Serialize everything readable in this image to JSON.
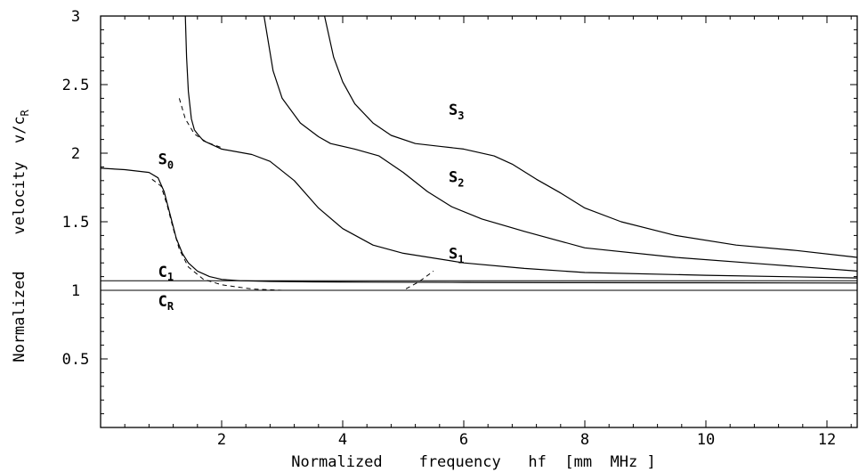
{
  "chart_data": {
    "type": "line",
    "title": "",
    "xlabel": "Normalized    frequency   hf  [mm  MHz ]",
    "ylabel": "Normalized    velocity  v/c",
    "ylabel_sub": "R",
    "xlim": [
      0,
      12.5
    ],
    "ylim": [
      0,
      3
    ],
    "x_ticks": [
      2,
      4,
      6,
      8,
      10,
      12
    ],
    "x_tick_labels": [
      "2",
      "4",
      "6",
      "8",
      "10",
      "12"
    ],
    "y_ticks": [
      0.5,
      1,
      1.5,
      2,
      2.5,
      3
    ],
    "y_tick_labels": [
      "0.5",
      "1",
      "1.5",
      "2",
      "2.5",
      "3"
    ],
    "grid": false,
    "legend": "none",
    "reference_lines": [
      {
        "label": "C",
        "sub": "1",
        "y": 1.07,
        "style": "solid"
      },
      {
        "label": "C",
        "sub": "R",
        "y": 1.0,
        "style": "solid"
      }
    ],
    "series": [
      {
        "name": "S",
        "sub": "0",
        "style": "solid",
        "x": [
          0.0,
          0.4,
          0.8,
          0.95,
          1.05,
          1.15,
          1.25,
          1.35,
          1.45,
          1.6,
          1.8,
          2.0,
          2.3,
          2.8,
          3.5,
          4.5,
          6.0,
          8.0,
          10.0,
          12.5
        ],
        "y": [
          1.89,
          1.88,
          1.86,
          1.82,
          1.72,
          1.55,
          1.38,
          1.27,
          1.2,
          1.14,
          1.1,
          1.08,
          1.07,
          1.065,
          1.062,
          1.06,
          1.058,
          1.056,
          1.055,
          1.053
        ]
      },
      {
        "name": "S",
        "sub": "1",
        "style": "solid",
        "x": [
          1.4,
          1.42,
          1.45,
          1.5,
          1.55,
          1.6,
          1.7,
          2.0,
          2.5,
          2.8,
          3.2,
          3.6,
          4.0,
          4.5,
          5.0,
          6.0,
          7.0,
          8.0,
          10.0,
          12.5
        ],
        "y": [
          3.0,
          2.7,
          2.45,
          2.25,
          2.17,
          2.14,
          2.09,
          2.03,
          1.99,
          1.94,
          1.8,
          1.6,
          1.45,
          1.33,
          1.27,
          1.2,
          1.16,
          1.13,
          1.11,
          1.09
        ]
      },
      {
        "name": "S",
        "sub": "2",
        "style": "solid",
        "x": [
          2.7,
          2.85,
          3.0,
          3.3,
          3.6,
          3.8,
          4.2,
          4.6,
          5.0,
          5.4,
          5.8,
          6.3,
          7.0,
          8.0,
          9.5,
          11.0,
          12.5
        ],
        "y": [
          3.0,
          2.6,
          2.4,
          2.22,
          2.12,
          2.07,
          2.03,
          1.98,
          1.86,
          1.72,
          1.61,
          1.52,
          1.43,
          1.31,
          1.24,
          1.19,
          1.14
        ]
      },
      {
        "name": "S",
        "sub": "3",
        "style": "solid",
        "x": [
          3.7,
          3.85,
          4.0,
          4.2,
          4.5,
          4.8,
          5.2,
          5.6,
          6.0,
          6.5,
          6.8,
          7.2,
          7.6,
          8.0,
          8.6,
          9.5,
          10.5,
          11.5,
          12.5
        ],
        "y": [
          3.0,
          2.7,
          2.52,
          2.36,
          2.22,
          2.13,
          2.07,
          2.05,
          2.03,
          1.98,
          1.92,
          1.81,
          1.71,
          1.6,
          1.5,
          1.4,
          1.33,
          1.29,
          1.24
        ]
      },
      {
        "name": "",
        "style": "dashed",
        "x": [
          0.85,
          1.0,
          1.1,
          1.2,
          1.3,
          1.45,
          1.7,
          2.0,
          2.5,
          3.0,
          4.0,
          5.0,
          5.25,
          5.5
        ],
        "y": [
          1.81,
          1.76,
          1.62,
          1.45,
          1.3,
          1.17,
          1.08,
          1.04,
          1.01,
          1.0,
          1.0,
          1.0,
          1.06,
          1.14
        ]
      },
      {
        "name": "",
        "style": "dashed",
        "x": [
          1.3,
          1.4,
          1.55,
          1.75,
          2.0
        ],
        "y": [
          2.4,
          2.25,
          2.14,
          2.08,
          2.04
        ]
      },
      {
        "name": "",
        "style": "dashed",
        "x": [
          0.0,
          0.5,
          1.0,
          1.5,
          2.0,
          2.2
        ],
        "y": [
          1.0,
          1.0,
          1.0,
          1.0,
          1.0,
          1.0
        ]
      }
    ],
    "curve_labels": [
      {
        "text": "S",
        "sub": "0",
        "x": 0.95,
        "y": 1.92
      },
      {
        "text": "S",
        "sub": "1",
        "x": 5.75,
        "y": 1.23
      },
      {
        "text": "S",
        "sub": "2",
        "x": 5.75,
        "y": 1.79
      },
      {
        "text": "S",
        "sub": "3",
        "x": 5.75,
        "y": 2.28
      }
    ]
  }
}
